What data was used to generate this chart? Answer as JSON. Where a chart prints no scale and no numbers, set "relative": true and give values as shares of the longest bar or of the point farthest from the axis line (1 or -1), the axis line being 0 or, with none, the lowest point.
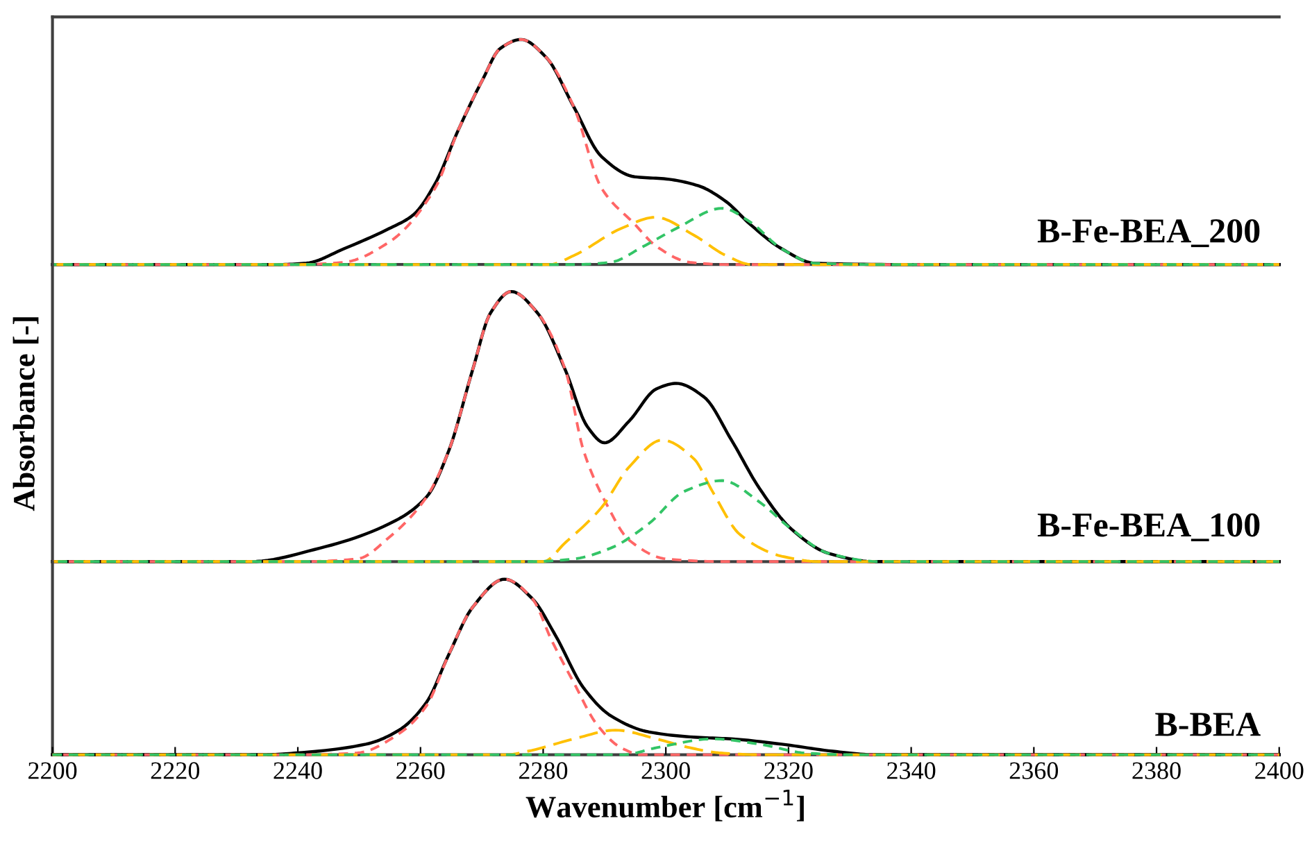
{
  "chart_data": [
    {
      "type": "line",
      "relative": true,
      "xlim": [
        2200,
        2400
      ],
      "tick_labels": false,
      "annotations": [
        "B-Fe-BEA_200"
      ],
      "series": [
        {
          "color": "#000000",
          "line_style": "solid",
          "x": [
            2200,
            2236.8,
            2241.4,
            2247.5,
            2254.9,
            2258.8,
            2262.4,
            2266.2,
            2270.1,
            2273.0,
            2276.4,
            2280.5,
            2285.0,
            2289.5,
            2294.9,
            2300.1,
            2305.3,
            2309.8,
            2313.7,
            2318.9,
            2324.3,
            2340,
            2400
          ],
          "values": [
            0,
            0,
            0.006,
            0.07,
            0.16,
            0.22,
            0.36,
            0.6,
            0.82,
            0.96,
            1.0,
            0.92,
            0.7,
            0.48,
            0.39,
            0.38,
            0.35,
            0.28,
            0.18,
            0.07,
            0.006,
            0,
            0
          ]
        },
        {
          "color": "#ff6666",
          "line_style": "dashed",
          "x": [
            2200,
            2240,
            2247.5,
            2254.9,
            2262.4,
            2266.2,
            2270.1,
            2273.0,
            2276.4,
            2280.5,
            2285.0,
            2289.5,
            2294.9,
            2298.5,
            2303.9,
            2310,
            2400
          ],
          "values": [
            0,
            0,
            0.01,
            0.1,
            0.34,
            0.6,
            0.82,
            0.96,
            1.0,
            0.92,
            0.7,
            0.34,
            0.18,
            0.08,
            0.01,
            0,
            0
          ]
        },
        {
          "color": "#ffc000",
          "line_style": "longdash",
          "x": [
            2200,
            2281,
            2285.0,
            2292.7,
            2298.3,
            2304.6,
            2309.8,
            2314,
            2400
          ],
          "values": [
            0,
            0,
            0.04,
            0.16,
            0.21,
            0.13,
            0.04,
            0,
            0
          ]
        },
        {
          "color": "#33c466",
          "line_style": "dashed",
          "x": [
            2200,
            2285,
            2291,
            2296.3,
            2301.7,
            2309.2,
            2313.7,
            2318.9,
            2324.3,
            2335,
            2400
          ],
          "values": [
            0,
            0,
            0.01,
            0.08,
            0.16,
            0.25,
            0.19,
            0.07,
            0.006,
            0,
            0
          ]
        }
      ]
    },
    {
      "type": "line",
      "relative": true,
      "xlim": [
        2200,
        2400
      ],
      "tick_labels": false,
      "ylabel": "Absorbance [-]",
      "annotations": [
        "B-Fe-BEA_100"
      ],
      "series": [
        {
          "color": "#000000",
          "line_style": "solid",
          "x": [
            2200,
            2232.3,
            2243.6,
            2254.9,
            2261,
            2264.6,
            2268.5,
            2271.4,
            2274.8,
            2279.1,
            2283.6,
            2287.2,
            2290.0,
            2294.0,
            2298.5,
            2301.7,
            2306.2,
            2310.7,
            2315.3,
            2320.5,
            2326.6,
            2334,
            2400
          ],
          "values": [
            0,
            0,
            0.05,
            0.14,
            0.24,
            0.41,
            0.71,
            0.92,
            1.0,
            0.92,
            0.71,
            0.5,
            0.44,
            0.52,
            0.64,
            0.66,
            0.61,
            0.45,
            0.27,
            0.12,
            0.03,
            0,
            0
          ]
        },
        {
          "color": "#ff6666",
          "line_style": "dashed",
          "x": [
            2200,
            2240,
            2249.7,
            2254.9,
            2261,
            2264.6,
            2268.5,
            2271.4,
            2274.8,
            2279.1,
            2283.6,
            2286.6,
            2290.4,
            2294,
            2300.1,
            2310,
            2400
          ],
          "values": [
            0,
            0,
            0.01,
            0.09,
            0.24,
            0.41,
            0.71,
            0.92,
            1.0,
            0.92,
            0.71,
            0.41,
            0.21,
            0.08,
            0.01,
            0,
            0
          ]
        },
        {
          "color": "#ffc000",
          "line_style": "longdash",
          "x": [
            2200,
            2280,
            2283.6,
            2289.5,
            2294,
            2299.4,
            2304.6,
            2307.6,
            2312.1,
            2318.9,
            2325,
            2400
          ],
          "values": [
            0,
            0,
            0.07,
            0.2,
            0.35,
            0.45,
            0.38,
            0.26,
            0.1,
            0.02,
            0,
            0
          ]
        },
        {
          "color": "#33c466",
          "line_style": "dashed",
          "x": [
            2200,
            2278,
            2285,
            2291,
            2297.2,
            2303,
            2309.2,
            2315.3,
            2320.5,
            2326.6,
            2335,
            2400
          ],
          "values": [
            0,
            0,
            0.01,
            0.05,
            0.14,
            0.26,
            0.3,
            0.22,
            0.12,
            0.03,
            0,
            0
          ]
        }
      ]
    },
    {
      "type": "line",
      "relative": true,
      "xlim": [
        2200,
        2400
      ],
      "xticks": [
        2200,
        2220,
        2240,
        2260,
        2280,
        2300,
        2320,
        2340,
        2360,
        2380,
        2400
      ],
      "tick_labels": "x",
      "xlabel": "Wavenumber [cm$^{−1}$]",
      "annotations": [
        "B-BEA"
      ],
      "series": [
        {
          "color": "#000000",
          "line_style": "solid",
          "x": [
            2200,
            2234.6,
            2239.8,
            2251.1,
            2256.5,
            2261,
            2264.6,
            2268.5,
            2273.7,
            2278.2,
            2282,
            2286.6,
            2291.1,
            2297.2,
            2304.6,
            2310.7,
            2318.9,
            2327.2,
            2334,
            2400
          ],
          "values": [
            0,
            0,
            0.01,
            0.06,
            0.14,
            0.3,
            0.57,
            0.84,
            1.0,
            0.89,
            0.68,
            0.38,
            0.22,
            0.13,
            0.1,
            0.09,
            0.06,
            0.02,
            0,
            0
          ]
        },
        {
          "color": "#ff6666",
          "line_style": "dashed",
          "x": [
            2200,
            2240,
            2249.7,
            2256.5,
            2261,
            2264.6,
            2268.5,
            2273.7,
            2278.2,
            2281.4,
            2285,
            2288.8,
            2292.7,
            2296,
            2400
          ],
          "values": [
            0,
            0,
            0.01,
            0.12,
            0.28,
            0.57,
            0.84,
            1.0,
            0.89,
            0.65,
            0.41,
            0.17,
            0.04,
            0,
            0
          ]
        },
        {
          "color": "#ffc000",
          "line_style": "longdash",
          "x": [
            2200,
            2274,
            2277.5,
            2285,
            2291.8,
            2298.5,
            2303.9,
            2309,
            2315,
            2400
          ],
          "values": [
            0,
            0,
            0.02,
            0.09,
            0.14,
            0.09,
            0.04,
            0.01,
            0,
            0
          ]
        },
        {
          "color": "#33c466",
          "line_style": "dashed",
          "x": [
            2200,
            2293,
            2298.5,
            2307.6,
            2315.3,
            2322.7,
            2330,
            2400
          ],
          "values": [
            0,
            0,
            0.04,
            0.09,
            0.06,
            0.01,
            0,
            0
          ]
        }
      ]
    }
  ]
}
